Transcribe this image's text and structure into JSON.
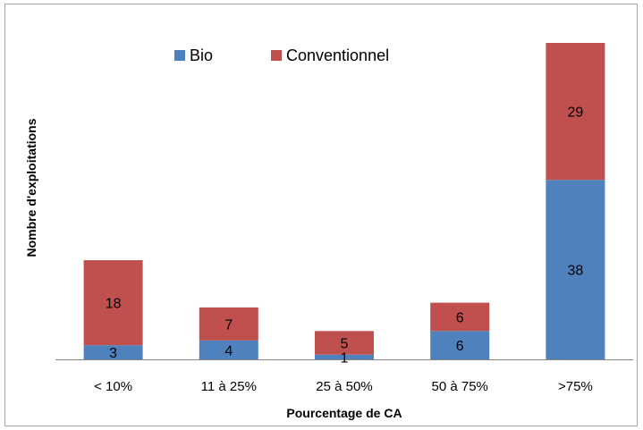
{
  "chart_data": {
    "type": "bar",
    "stacked": true,
    "title": "",
    "xlabel": "Pourcentage de CA",
    "ylabel": "Nombre d'exploitations",
    "categories": [
      "< 10%",
      "11 à 25%",
      "25 à 50%",
      "50 à 75%",
      ">75%"
    ],
    "series": [
      {
        "name": "Bio",
        "values": [
          3,
          4,
          1,
          6,
          38
        ],
        "color": "#4f81bd"
      },
      {
        "name": "Conventionnel",
        "values": [
          18,
          7,
          5,
          6,
          29
        ],
        "color": "#c0504d"
      }
    ],
    "ylim": [
      0,
      67
    ],
    "grid": false,
    "legend_position": "top"
  }
}
